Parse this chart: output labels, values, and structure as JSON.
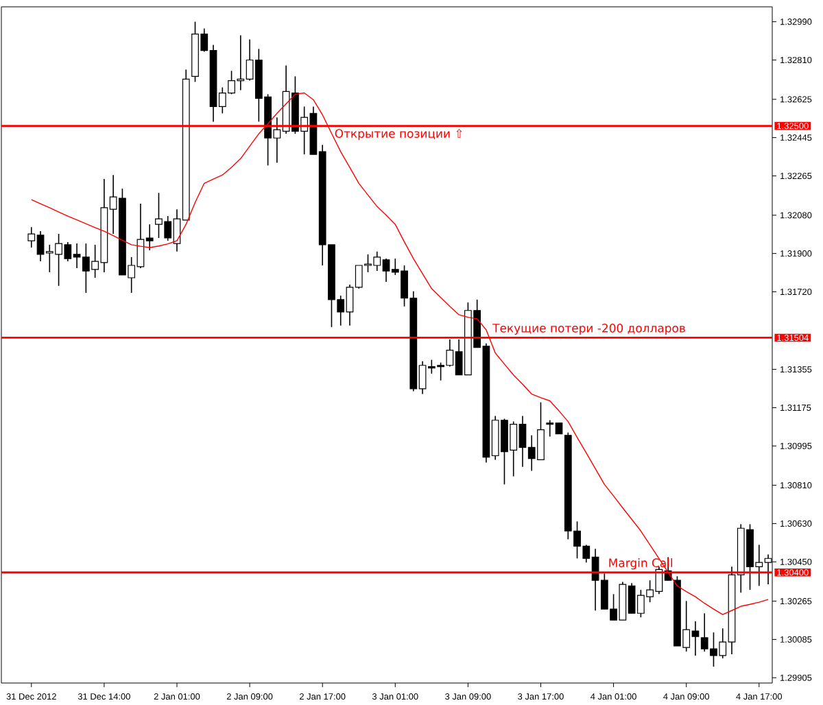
{
  "chart_data": {
    "type": "candlestick",
    "categories": [
      "31 Dec 2012",
      null,
      null,
      null,
      null,
      null,
      null,
      null,
      "31 Dec 14:00",
      null,
      null,
      null,
      null,
      null,
      null,
      null,
      "2 Jan 01:00",
      null,
      null,
      null,
      null,
      null,
      null,
      null,
      "2 Jan 09:00",
      null,
      null,
      null,
      null,
      null,
      null,
      null,
      "2 Jan 17:00",
      null,
      null,
      null,
      null,
      null,
      null,
      null,
      "3 Jan 01:00",
      null,
      null,
      null,
      null,
      null,
      null,
      null,
      "3 Jan 09:00",
      null,
      null,
      null,
      null,
      null,
      null,
      null,
      "3 Jan 17:00",
      null,
      null,
      null,
      null,
      null,
      null,
      null,
      "4 Jan 01:00",
      null,
      null,
      null,
      null,
      null,
      null,
      null,
      "4 Jan 09:00",
      null,
      null,
      null,
      null,
      null,
      null,
      null,
      "4 Jan 17:00",
      null
    ],
    "ohlc": [
      [
        1.3196,
        1.32024,
        1.31928,
        1.31992
      ],
      [
        1.31986,
        1.32005,
        1.31863,
        1.31896
      ],
      [
        1.31902,
        1.31941,
        1.31812,
        1.31909
      ],
      [
        1.31896,
        1.31992,
        1.31748,
        1.31947
      ],
      [
        1.31941,
        1.31954,
        1.31863,
        1.31876
      ],
      [
        1.31896,
        1.31947,
        1.31831,
        1.31883
      ],
      [
        1.31883,
        1.31947,
        1.31715,
        1.31818
      ],
      [
        1.31825,
        1.31941,
        1.31786,
        1.31863
      ],
      [
        1.31857,
        1.3225,
        1.31812,
        1.32115
      ],
      [
        1.32108,
        1.32269,
        1.31992,
        1.32166
      ],
      [
        1.3216,
        1.32205,
        1.31799,
        1.31799
      ],
      [
        1.31786,
        1.31883,
        1.31715,
        1.31844
      ],
      [
        1.31838,
        1.32134,
        1.31831,
        1.31966
      ],
      [
        1.31973,
        1.32037,
        1.31915,
        1.3196
      ],
      [
        1.32037,
        1.32185,
        1.31973,
        1.32063
      ],
      [
        1.3205,
        1.32076,
        1.3196,
        1.31973
      ],
      [
        1.31947,
        1.32108,
        1.31909,
        1.32063
      ],
      [
        1.32057,
        1.32765,
        1.32057,
        1.3272
      ],
      [
        1.32733,
        1.3299,
        1.32707,
        1.32932
      ],
      [
        1.32932,
        1.32958,
        1.32849,
        1.32855
      ],
      [
        1.32855,
        1.32881,
        1.3252,
        1.32591
      ],
      [
        1.32591,
        1.32681,
        1.32559,
        1.32655
      ],
      [
        1.32655,
        1.32759,
        1.32649,
        1.32713
      ],
      [
        1.32713,
        1.32926,
        1.32668,
        1.3272
      ],
      [
        1.3272,
        1.32907,
        1.32713,
        1.3281
      ],
      [
        1.3281,
        1.32862,
        1.3252,
        1.3263
      ],
      [
        1.32636,
        1.32649,
        1.32314,
        1.32443
      ],
      [
        1.32443,
        1.3254,
        1.32327,
        1.32482
      ],
      [
        1.32475,
        1.32784,
        1.32463,
        1.32662
      ],
      [
        1.32655,
        1.32733,
        1.32463,
        1.32475
      ],
      [
        1.32475,
        1.32591,
        1.32366,
        1.3254
      ],
      [
        1.32559,
        1.32591,
        1.32366,
        1.32366
      ],
      [
        1.32379,
        1.32411,
        1.31844,
        1.31941
      ],
      [
        1.31941,
        1.31941,
        1.31554,
        1.31683
      ],
      [
        1.31683,
        1.31702,
        1.31561,
        1.31625
      ],
      [
        1.31625,
        1.31754,
        1.31561,
        1.31741
      ],
      [
        1.31741,
        1.31844,
        1.31735,
        1.31844
      ],
      [
        1.31844,
        1.31896,
        1.31812,
        1.3185
      ],
      [
        1.31844,
        1.31909,
        1.31818,
        1.31883
      ],
      [
        1.3187,
        1.31876,
        1.31767,
        1.31818
      ],
      [
        1.31825,
        1.31876,
        1.31799,
        1.31812
      ],
      [
        1.31818,
        1.31844,
        1.31651,
        1.3169
      ],
      [
        1.3169,
        1.31722,
        1.31252,
        1.31264
      ],
      [
        1.31264,
        1.31393,
        1.31239,
        1.31374
      ],
      [
        1.31368,
        1.314,
        1.31335,
        1.31361
      ],
      [
        1.31374,
        1.31387,
        1.31303,
        1.31368
      ],
      [
        1.31374,
        1.31496,
        1.31368,
        1.31445
      ],
      [
        1.31438,
        1.31496,
        1.31329,
        1.31329
      ],
      [
        1.31329,
        1.3167,
        1.31329,
        1.31632
      ],
      [
        1.31632,
        1.31683,
        1.31458,
        1.31458
      ],
      [
        1.31464,
        1.31477,
        1.30917,
        1.30942
      ],
      [
        1.30949,
        1.31136,
        1.3093,
        1.31116
      ],
      [
        1.31116,
        1.31123,
        1.30814,
        1.30968
      ],
      [
        1.30975,
        1.3111,
        1.30852,
        1.31097
      ],
      [
        1.31097,
        1.31136,
        1.30897,
        1.30988
      ],
      [
        1.30988,
        1.31045,
        1.30878,
        1.30936
      ],
      [
        1.3093,
        1.312,
        1.3093,
        1.31071
      ],
      [
        1.31103,
        1.31116,
        1.31039,
        1.31097
      ],
      [
        1.31103,
        1.31103,
        1.31052,
        1.31052
      ],
      [
        1.31045,
        1.31058,
        1.30556,
        1.30595
      ],
      [
        1.30595,
        1.3064,
        1.30466,
        1.30524
      ],
      [
        1.30524,
        1.3053,
        1.30447,
        1.30466
      ],
      [
        1.30472,
        1.30511,
        1.30221,
        1.30363
      ],
      [
        1.30363,
        1.30395,
        1.30228,
        1.30228
      ],
      [
        1.30228,
        1.30298,
        1.30176,
        1.30176
      ],
      [
        1.30176,
        1.30356,
        1.30176,
        1.30344
      ],
      [
        1.30337,
        1.3035,
        1.30208,
        1.30208
      ],
      [
        1.30208,
        1.30318,
        1.30189,
        1.30292
      ],
      [
        1.30286,
        1.30363,
        1.3026,
        1.30318
      ],
      [
        1.30311,
        1.30427,
        1.30298,
        1.30414
      ],
      [
        1.30408,
        1.30472,
        1.30363,
        1.30363
      ],
      [
        1.30363,
        1.30382,
        1.30054,
        1.30054
      ],
      [
        1.30047,
        1.30266,
        1.30028,
        1.30131
      ],
      [
        1.30125,
        1.3017,
        1.30009,
        1.30099
      ],
      [
        1.30093,
        1.30208,
        1.30028,
        1.30041
      ],
      [
        1.30041,
        1.30118,
        1.29957,
        1.30009
      ],
      [
        1.30009,
        1.30137,
        1.29996,
        1.30073
      ],
      [
        1.30073,
        1.30427,
        1.30015,
        1.30389
      ],
      [
        1.30389,
        1.30627,
        1.30305,
        1.30608
      ],
      [
        1.30601,
        1.30627,
        1.30318,
        1.30427
      ],
      [
        1.30427,
        1.3053,
        1.30337,
        1.30447
      ],
      [
        1.30447,
        1.30485,
        1.30344,
        1.30466
      ]
    ],
    "series": [
      {
        "type": "line",
        "color": "#ff0000",
        "values": [
          1.32153,
          1.32134,
          1.32115,
          1.32095,
          1.32076,
          1.32058,
          1.3204,
          1.32022,
          1.32005,
          1.31984,
          1.31962,
          1.31941,
          1.31934,
          1.31928,
          1.31935,
          1.31945,
          1.3196,
          1.32037,
          1.3214,
          1.3223,
          1.3225,
          1.32269,
          1.32305,
          1.32346,
          1.32405,
          1.32463,
          1.3251,
          1.32559,
          1.32604,
          1.32649,
          1.32655,
          1.32623,
          1.32552,
          1.32465,
          1.32379,
          1.32305,
          1.3223,
          1.32175,
          1.32121,
          1.3208,
          1.32037,
          1.31955,
          1.31876,
          1.31805,
          1.31735,
          1.31693,
          1.31651,
          1.31612,
          1.316,
          1.31593,
          1.31541,
          1.31432,
          1.3138,
          1.31329,
          1.31285,
          1.31239,
          1.31222,
          1.31207,
          1.3116,
          1.3111,
          1.31035,
          1.30962,
          1.30888,
          1.30814,
          1.3076,
          1.30704,
          1.3065,
          1.30595,
          1.3053,
          1.30466,
          1.304,
          1.30337,
          1.3031,
          1.30286,
          1.30255,
          1.30228,
          1.30202,
          1.30221,
          1.30241,
          1.3025,
          1.3026,
          1.30273
        ]
      }
    ],
    "ylim": [
      1.2988,
      1.3306
    ],
    "yticks": [
      {
        "value": 1.3299,
        "label": "1.32990"
      },
      {
        "value": 1.3281,
        "label": "1.32810"
      },
      {
        "value": 1.32625,
        "label": "1.32625"
      },
      {
        "value": 1.32445,
        "label": "1.32445"
      },
      {
        "value": 1.32265,
        "label": "1.32265"
      },
      {
        "value": 1.3208,
        "label": "1.32080"
      },
      {
        "value": 1.319,
        "label": "1.31900"
      },
      {
        "value": 1.3172,
        "label": "1.31720"
      },
      {
        "value": 1.31355,
        "label": "1.31355"
      },
      {
        "value": 1.31175,
        "label": "1.31175"
      },
      {
        "value": 1.30995,
        "label": "1.30995"
      },
      {
        "value": 1.3081,
        "label": "1.30810"
      },
      {
        "value": 1.3063,
        "label": "1.30630"
      },
      {
        "value": 1.3045,
        "label": "1.30450"
      },
      {
        "value": 1.30265,
        "label": "1.30265"
      },
      {
        "value": 1.30085,
        "label": "1.30085"
      },
      {
        "value": 1.29905,
        "label": "1.29905"
      }
    ],
    "ref_lines": [
      {
        "axis": "y",
        "value": 1.325,
        "label": "Открытие позиции ⇧",
        "color": "#ff0000"
      },
      {
        "axis": "y",
        "value": 1.31504,
        "label": "Текущие потери -200 долларов",
        "color": "#ff0000"
      },
      {
        "axis": "y",
        "value": 1.304,
        "label": "Margin Call",
        "color": "#ff0000"
      }
    ],
    "annotations": [
      "1.32500",
      "1.31504",
      "1.30400"
    ]
  }
}
